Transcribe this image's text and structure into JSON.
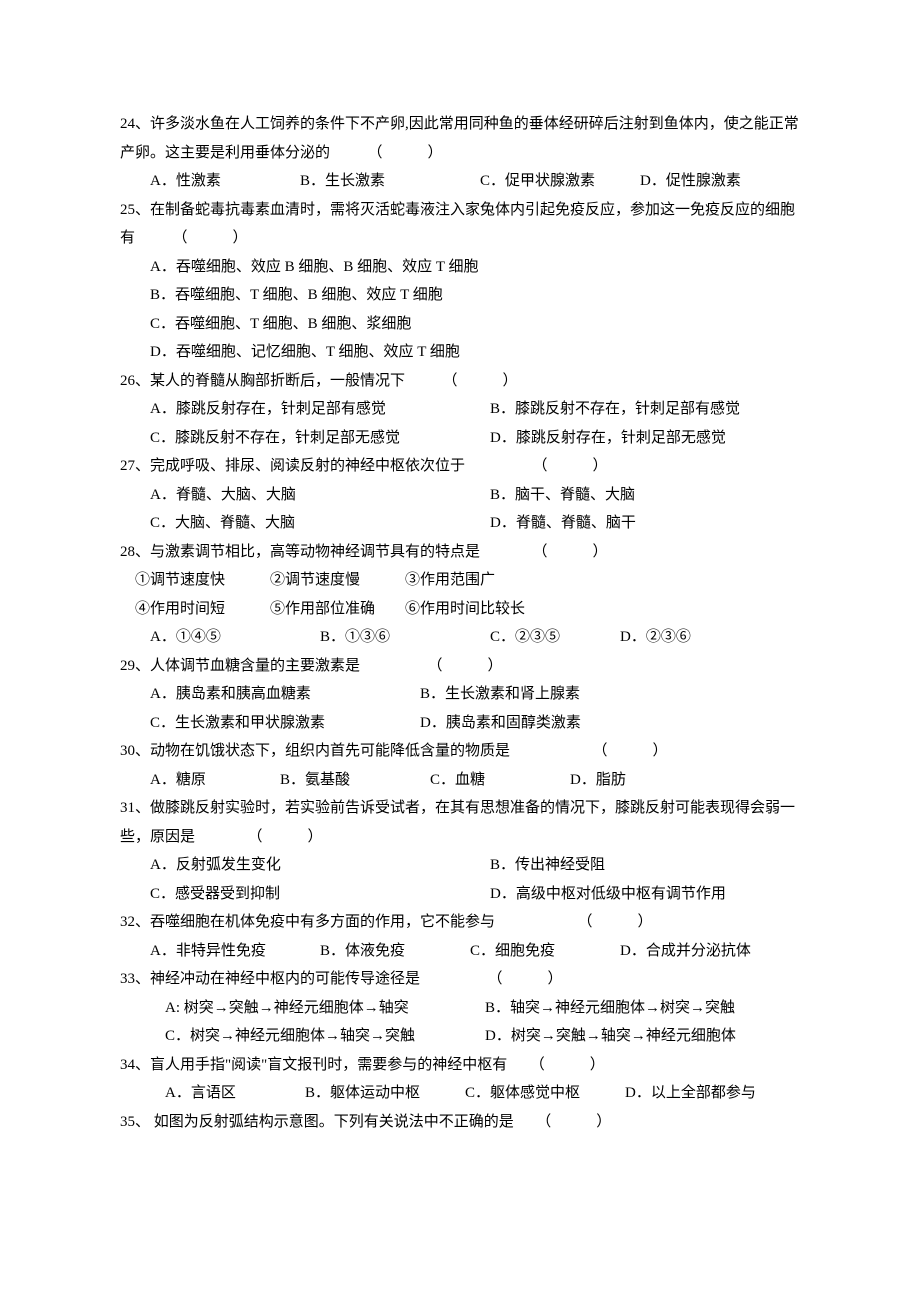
{
  "questions": [
    {
      "num": "24",
      "stem_lines": [
        "24、许多淡水鱼在人工饲养的条件下不产卵,因此常用同种鱼的垂体经研碎后注射到鱼体内，使之能正常产卵。这主要是利用垂体分泌的　　　（　　　）"
      ],
      "options": [
        {
          "type": "inline",
          "items": [
            "A．性激素",
            "B．生长激素",
            "C．促甲状腺激素",
            "D．促性腺激素"
          ],
          "widths": [
            150,
            180,
            160,
            130
          ]
        }
      ]
    },
    {
      "num": "25",
      "stem_lines": [
        "25、在制备蛇毒抗毒素血清时，需将灭活蛇毒液注入家兔体内引起免疫反应，参加这一免疫反应的细胞有　　　（　　　）"
      ],
      "options": [
        {
          "type": "block",
          "text": "A．吞噬细胞、效应 B 细胞、B 细胞、效应 T 细胞"
        },
        {
          "type": "block",
          "text": "B．吞噬细胞、T 细胞、B 细胞、效应 T 细胞"
        },
        {
          "type": "block",
          "text": "C．吞噬细胞、T 细胞、B 细胞、浆细胞"
        },
        {
          "type": "block",
          "text": "D．吞噬细胞、记忆细胞、T 细胞、效应 T 细胞"
        }
      ]
    },
    {
      "num": "26",
      "stem_lines": [
        "26、某人的脊髓从胸部折断后，一般情况下　　　（　　　）"
      ],
      "options": [
        {
          "type": "pair",
          "left": "A．膝跳反射存在，针刺足部有感觉",
          "right": "B．膝跳反射不存在，针刺足部有感觉"
        },
        {
          "type": "pair",
          "left": "C．膝跳反射不存在，针刺足部无感觉",
          "right": "D．膝跳反射存在，针刺足部无感觉"
        }
      ]
    },
    {
      "num": "27",
      "stem_lines": [
        "27、完成呼吸、排尿、阅读反射的神经中枢依次位于　　　　　（　　　）"
      ],
      "options": [
        {
          "type": "pair",
          "left": "A．脊髓、大脑、大脑",
          "right": "B．脑干、脊髓、大脑"
        },
        {
          "type": "pair",
          "left": "C．大脑、脊髓、大脑",
          "right": "D．脊髓、脊髓、脑干"
        }
      ]
    },
    {
      "num": "28",
      "stem_lines": [
        "28、与激素调节相比，高等动物神经调节具有的特点是　　　　（　　　）"
      ],
      "sub_lines": [
        "①调节速度快　　　②调节速度慢　　　③作用范围广",
        "④作用时间短　　　⑤作用部位准确　　⑥作用时间比较长"
      ],
      "options": [
        {
          "type": "inline",
          "items": [
            "A．①④⑤",
            "B．①③⑥",
            "C．②③⑤",
            "D．②③⑥"
          ],
          "widths": [
            170,
            170,
            130,
            110
          ]
        }
      ]
    },
    {
      "num": "29",
      "stem_lines": [
        "29、人体调节血糖含量的主要激素是　　　　　（　　　）"
      ],
      "options": [
        {
          "type": "pair2",
          "left": "A．胰岛素和胰高血糖素",
          "right": "B．生长激素和肾上腺素"
        },
        {
          "type": "pair2",
          "left": "C．生长激素和甲状腺激素",
          "right": "D．胰岛素和固醇类激素"
        }
      ]
    },
    {
      "num": "30",
      "stem_lines": [
        "30、动物在饥饿状态下，组织内首先可能降低含量的物质是　　　　　　（　　　）"
      ],
      "options": [
        {
          "type": "inline",
          "items": [
            "A．糖原",
            "B．氨基酸",
            "C．血糖",
            "D．脂肪"
          ],
          "widths": [
            130,
            150,
            140,
            100
          ]
        }
      ]
    },
    {
      "num": "31",
      "stem_lines": [
        "31、做膝跳反射实验时，若实验前告诉受试者，在其有思想准备的情况下，膝跳反射可能表现得会弱一些，原因是　　　　（　　　）"
      ],
      "options": [
        {
          "type": "pair",
          "left": "A．反射弧发生变化",
          "right": "B．传出神经受阻"
        },
        {
          "type": "pair",
          "left": "C．感受器受到抑制",
          "right": "D．高级中枢对低级中枢有调节作用"
        }
      ]
    },
    {
      "num": "32",
      "stem_lines": [
        "32、吞噬细胞在机体免疫中有多方面的作用，它不能参与　　　　　　（　　　）"
      ],
      "options": [
        {
          "type": "inline",
          "items": [
            "A．非特异性免疫",
            "B．体液免疫",
            "C．细胞免疫",
            "D．合成并分泌抗体"
          ],
          "widths": [
            170,
            150,
            150,
            150
          ]
        }
      ]
    },
    {
      "num": "33",
      "stem_lines": [
        "33、神经冲动在神经中枢内的可能传导途径是　　　　　（　　　）"
      ],
      "options": [
        {
          "type": "pair3",
          "left": "A: 树突→突触→神经元细胞体→轴突",
          "right": "B．轴突→神经元细胞体→树突→突触"
        },
        {
          "type": "pair3",
          "left": "C．树突→神经元细胞体→轴突→突触",
          "right": "D．树突→突触→轴突→神经元细胞体"
        }
      ]
    },
    {
      "num": "34",
      "stem_lines": [
        "34、盲人用手指\"阅读\"盲文报刊时，需要参与的神经中枢有　　（　　　）"
      ],
      "options": [
        {
          "type": "inline",
          "indent": "3em",
          "items": [
            "A．言语区",
            "B．躯体运动中枢",
            "C．躯体感觉中枢",
            "D．以上全部都参与"
          ],
          "widths": [
            140,
            160,
            160,
            150
          ]
        }
      ]
    },
    {
      "num": "35",
      "stem_lines": [
        "35、 如图为反射弧结构示意图。下列有关说法中不正确的是　　（　　　）"
      ]
    }
  ]
}
